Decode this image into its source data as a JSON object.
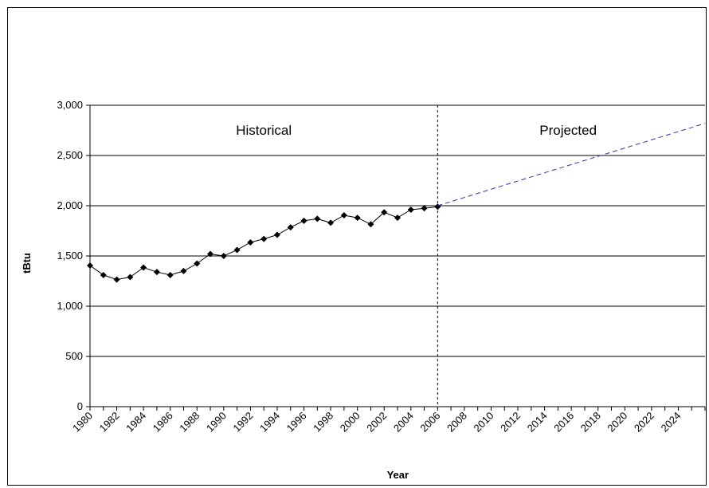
{
  "chart_data": {
    "type": "line",
    "title": "",
    "xlabel": "Year",
    "ylabel": "tBtu",
    "xlim": [
      1980,
      2026
    ],
    "ylim": [
      0,
      3000
    ],
    "yticks": [
      0,
      500,
      1000,
      1500,
      2000,
      2500,
      3000
    ],
    "ytick_labels": [
      "0",
      "500",
      "1,000",
      "1,500",
      "2,000",
      "2,500",
      "3,000"
    ],
    "xticks": [
      1980,
      1982,
      1984,
      1986,
      1988,
      1990,
      1992,
      1994,
      1996,
      1998,
      2000,
      2002,
      2004,
      2006,
      2008,
      2010,
      2012,
      2014,
      2016,
      2018,
      2020,
      2022,
      2024
    ],
    "xtick_labels": [
      "1980",
      "1982",
      "1984",
      "1986",
      "1988",
      "1990",
      "1992",
      "1994",
      "1996",
      "1998",
      "2000",
      "2002",
      "2004",
      "2006",
      "2008",
      "2010",
      "2012",
      "2014",
      "2016",
      "2018",
      "2020",
      "2022",
      "2024"
    ],
    "grid": "horizontal",
    "annotations": [
      {
        "text": "Historical",
        "region": "before-divider"
      },
      {
        "text": "Projected",
        "region": "after-divider"
      }
    ],
    "divider_x": 2006,
    "series": [
      {
        "style": "solid-with-diamond-markers",
        "color": "#000000",
        "x": [
          1980,
          1981,
          1982,
          1983,
          1984,
          1985,
          1986,
          1987,
          1988,
          1989,
          1990,
          1991,
          1992,
          1993,
          1994,
          1995,
          1996,
          1997,
          1998,
          1999,
          2000,
          2001,
          2002,
          2003,
          2004,
          2005,
          2006
        ],
        "y": [
          1405,
          1310,
          1265,
          1290,
          1385,
          1340,
          1310,
          1350,
          1425,
          1520,
          1500,
          1560,
          1635,
          1670,
          1710,
          1785,
          1850,
          1870,
          1830,
          1905,
          1880,
          1815,
          1935,
          1880,
          1960,
          1975,
          1990
        ]
      },
      {
        "style": "dashed",
        "color": "#3333aa",
        "x": [
          2006,
          2026
        ],
        "y": [
          2000,
          2820
        ]
      }
    ]
  }
}
